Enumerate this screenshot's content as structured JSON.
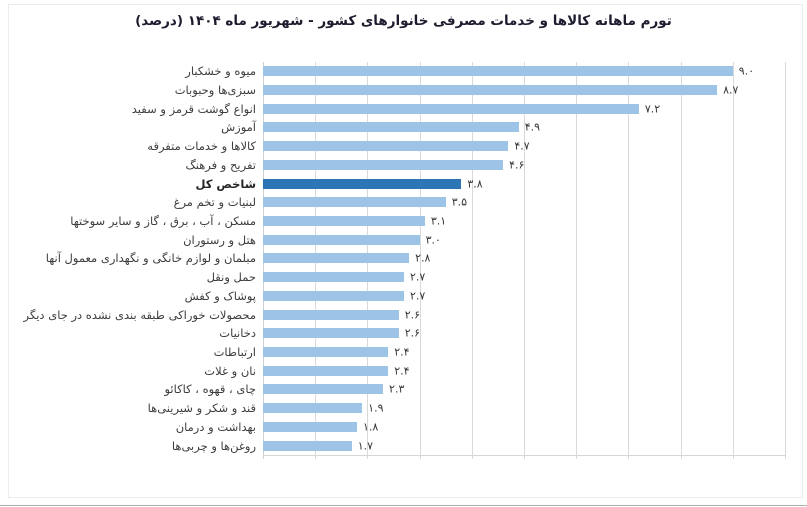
{
  "title": "تورم ماهانه کالاها و خدمات مصرفی خانوارهای کشور - شهریور ماه ۱۴۰۴ (درصد)",
  "chart_data": {
    "type": "bar",
    "orientation": "horizontal",
    "title": "تورم ماهانه کالاها و خدمات مصرفی خانوارهای کشور - شهریور ماه ۱۴۰۴ (درصد)",
    "xlabel": "",
    "ylabel": "",
    "unit": "درصد",
    "xlim": [
      0,
      10
    ],
    "gridline_step": 1,
    "grid": true,
    "legend": "none",
    "categories": [
      "میوه و خشکبار",
      "سبزی‌ها وحبوبات",
      "انواع گوشت قرمز و سفید",
      "آموزش",
      "کالاها و خدمات متفرقه",
      "تفریح و فرهنگ",
      "شاخص کل",
      "لبنیات و تخم مرغ",
      "مسکن ، آب ، برق ، گاز و سایر سوختها",
      "هتل و رستوران",
      "مبلمان و لوازم خانگی و نگهداری معمول آنها",
      "حمل ونقل",
      "پوشاک و کفش",
      "محصولات خوراکی طبقه بندی نشده در جای دیگر",
      "دخانیات",
      "ارتباطات",
      "نان و غلات",
      "چای ، قهوه ، کاکائو",
      "قند و شکر و شیرینی‌ها",
      "بهداشت و درمان",
      "روغن‌ها و چربی‌ها"
    ],
    "values": [
      9.0,
      8.7,
      7.2,
      4.9,
      4.7,
      4.6,
      3.8,
      3.5,
      3.1,
      3.0,
      2.8,
      2.7,
      2.7,
      2.6,
      2.6,
      2.4,
      2.4,
      2.3,
      1.9,
      1.8,
      1.7
    ],
    "value_labels": [
      "۹.۰",
      "۸.۷",
      "۷.۲",
      "۴.۹",
      "۴.۷",
      "۴.۶",
      "۳.۸",
      "۳.۵",
      "۳.۱",
      "۳.۰",
      "۲.۸",
      "۲.۷",
      "۲.۷",
      "۲.۶",
      "۲.۶",
      "۲.۴",
      "۲.۴",
      "۲.۳",
      "۱.۹",
      "۱.۸",
      "۱.۷"
    ],
    "highlight_category": "شاخص کل",
    "highlight_index": 6,
    "colors": {
      "bar": "#9DC3E6",
      "highlight_bar": "#2E75B6",
      "gridline": "#D9D9D9",
      "title_text": "#1C1C2E",
      "label_text": "#3D3D3D"
    }
  }
}
